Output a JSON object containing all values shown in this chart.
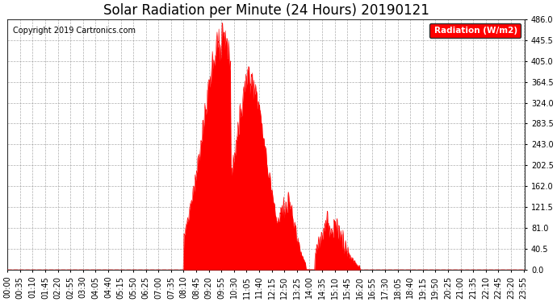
{
  "title": "Solar Radiation per Minute (24 Hours) 20190121",
  "copyright_text": "Copyright 2019 Cartronics.com",
  "legend_label": "Radiation (W/m2)",
  "ylim": [
    0,
    486.0
  ],
  "yticks": [
    0.0,
    40.5,
    81.0,
    121.5,
    162.0,
    202.5,
    243.0,
    283.5,
    324.0,
    364.5,
    405.0,
    445.5,
    486.0
  ],
  "fill_color": "#FF0000",
  "line_color": "#FF0000",
  "background_color": "#FFFFFF",
  "legend_bg": "#FF0000",
  "legend_text_color": "#FFFFFF",
  "title_fontsize": 12,
  "tick_fontsize": 7,
  "total_minutes": 1440,
  "copyright_fontsize": 7,
  "tick_every_n_minutes": 35
}
